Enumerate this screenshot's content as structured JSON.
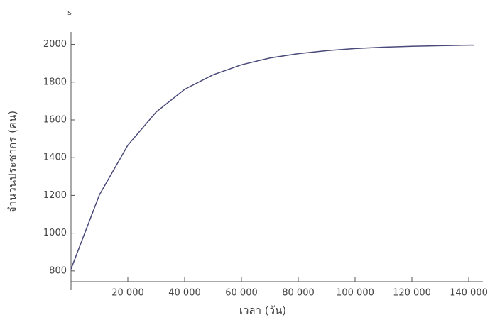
{
  "chart_data": {
    "type": "line",
    "x_axis_label": "เวลา (วัน)",
    "y_axis_label": "จำนวนประชากร (คน)",
    "y_axis_symbol": "s",
    "x": [
      0,
      10000,
      20000,
      30000,
      40000,
      50000,
      60000,
      70000,
      80000,
      90000,
      100000,
      110000,
      120000,
      130000,
      140000,
      142000
    ],
    "series": [
      {
        "color": "#4a4a7a",
        "values": [
          810,
          1203,
          1466,
          1642,
          1762,
          1839,
          1892,
          1928,
          1951,
          1967,
          1978,
          1985,
          1990,
          1993,
          1996,
          1996
        ]
      }
    ],
    "xlim": [
      0,
      145000
    ],
    "ylim": [
      743,
      2066
    ],
    "xticks": [
      {
        "value": 20000,
        "label": "20 000"
      },
      {
        "value": 40000,
        "label": "40 000"
      },
      {
        "value": 60000,
        "label": "60 000"
      },
      {
        "value": 80000,
        "label": "80 000"
      },
      {
        "value": 100000,
        "label": "100 000"
      },
      {
        "value": 120000,
        "label": "120 000"
      },
      {
        "value": 140000,
        "label": "140 000"
      }
    ],
    "yticks": [
      800,
      1000,
      1200,
      1400,
      1600,
      1800,
      2000
    ],
    "grid": false
  }
}
